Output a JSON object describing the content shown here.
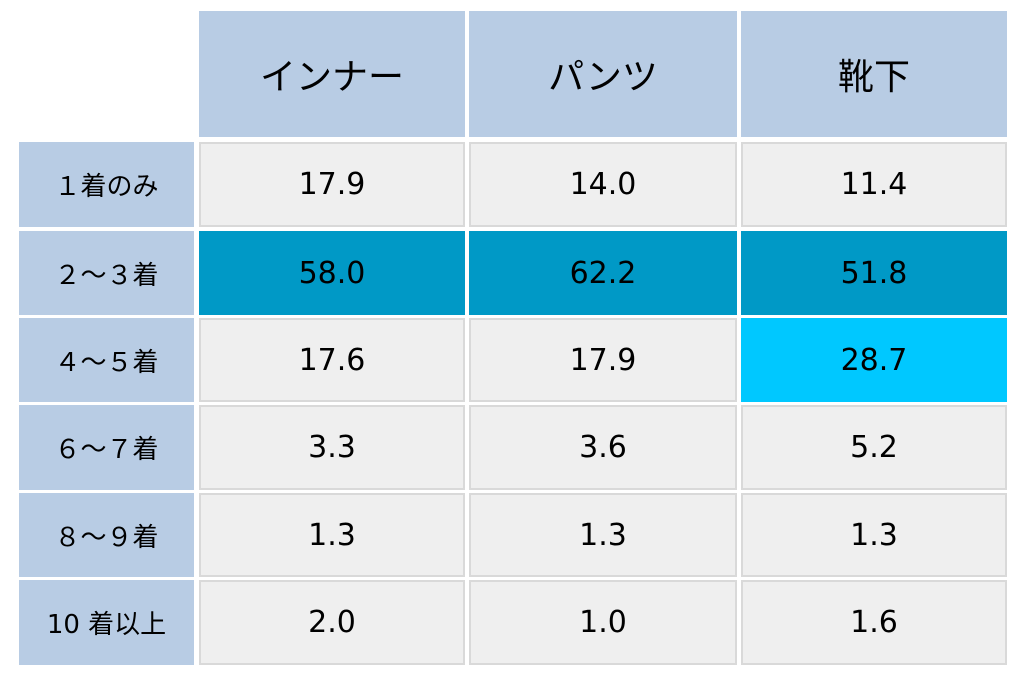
{
  "chart_data": {
    "type": "table",
    "columns": [
      "インナー",
      "パンツ",
      "靴下"
    ],
    "rows": [
      {
        "label": "１着のみ",
        "values": [
          "17.9",
          "14.0",
          "11.4"
        ]
      },
      {
        "label": "２～３着",
        "values": [
          "58.0",
          "62.2",
          "51.8"
        ]
      },
      {
        "label": "４～５着",
        "values": [
          "17.6",
          "17.9",
          "28.7"
        ]
      },
      {
        "label": "６～７着",
        "values": [
          "3.3",
          "3.6",
          "5.2"
        ]
      },
      {
        "label": "８～９着",
        "values": [
          "1.3",
          "1.3",
          "1.3"
        ]
      },
      {
        "label": "10 着以上",
        "values": [
          "2.0",
          "1.0",
          "1.6"
        ]
      }
    ],
    "highlights": {
      "dark": {
        "color": "#0099c6",
        "cells": [
          [
            1,
            0
          ],
          [
            1,
            1
          ],
          [
            1,
            2
          ]
        ]
      },
      "light": {
        "color": "#00c8ff",
        "cells": [
          [
            2,
            2
          ]
        ]
      }
    },
    "header_color": "#b8cce4",
    "cell_color": "#efefef"
  }
}
